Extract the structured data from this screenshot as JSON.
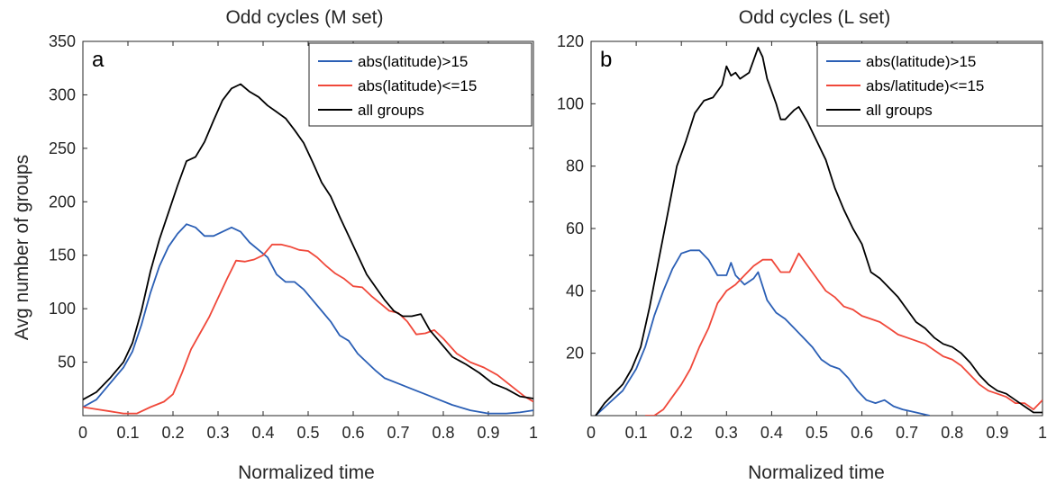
{
  "colors": {
    "blue": "#2b5fb5",
    "red": "#f0483a",
    "black": "#000000"
  },
  "chart_data": [
    {
      "type": "line",
      "panel_letter": "a",
      "title": "Odd cycles (M set)",
      "xlabel": "Normalized time",
      "ylabel": "Avg number of groups",
      "xlim": [
        0,
        1
      ],
      "ylim": [
        0,
        350
      ],
      "xticks": [
        0,
        0.1,
        0.2,
        0.3,
        0.4,
        0.5,
        0.6,
        0.7,
        0.8,
        0.9,
        1
      ],
      "xtick_labels": [
        "0",
        "0.1",
        "0.2",
        "0.3",
        "0.4",
        "0.5",
        "0.6",
        "0.7",
        "0.8",
        "0.9",
        "1"
      ],
      "yticks": [
        50,
        100,
        150,
        200,
        250,
        300,
        350
      ],
      "ytick_labels": [
        "50",
        "100",
        "150",
        "200",
        "250",
        "300",
        "350"
      ],
      "legend": {
        "position": "top-right",
        "entries": [
          "abs(latitude)>15",
          "abs(latitude)<=15",
          "all groups"
        ]
      },
      "series": [
        {
          "name": "abs(latitude)>15",
          "color": "#2b5fb5",
          "x": [
            0,
            0.03,
            0.06,
            0.09,
            0.11,
            0.13,
            0.15,
            0.17,
            0.19,
            0.21,
            0.23,
            0.25,
            0.27,
            0.29,
            0.31,
            0.33,
            0.35,
            0.37,
            0.39,
            0.41,
            0.43,
            0.45,
            0.47,
            0.49,
            0.51,
            0.53,
            0.55,
            0.57,
            0.59,
            0.61,
            0.63,
            0.65,
            0.67,
            0.7,
            0.73,
            0.76,
            0.79,
            0.82,
            0.86,
            0.9,
            0.94,
            0.97,
            1.0
          ],
          "y": [
            8,
            15,
            30,
            45,
            60,
            85,
            115,
            140,
            158,
            170,
            179,
            176,
            168,
            168,
            172,
            176,
            172,
            162,
            155,
            148,
            132,
            125,
            125,
            118,
            108,
            98,
            88,
            75,
            70,
            58,
            50,
            42,
            35,
            30,
            25,
            20,
            15,
            10,
            5,
            2,
            2,
            3,
            5
          ]
        },
        {
          "name": "abs(latitude)<=15",
          "color": "#f0483a",
          "x": [
            0,
            0.03,
            0.06,
            0.09,
            0.12,
            0.15,
            0.18,
            0.2,
            0.22,
            0.24,
            0.26,
            0.28,
            0.3,
            0.32,
            0.34,
            0.36,
            0.38,
            0.4,
            0.42,
            0.44,
            0.46,
            0.48,
            0.5,
            0.52,
            0.54,
            0.56,
            0.58,
            0.6,
            0.62,
            0.64,
            0.66,
            0.68,
            0.7,
            0.72,
            0.74,
            0.76,
            0.78,
            0.8,
            0.83,
            0.86,
            0.89,
            0.92,
            0.95,
            0.98,
            1.0
          ],
          "y": [
            8,
            6,
            4,
            2,
            2,
            8,
            13,
            20,
            40,
            62,
            77,
            92,
            110,
            128,
            145,
            144,
            146,
            150,
            160,
            160,
            158,
            155,
            154,
            148,
            140,
            133,
            128,
            121,
            120,
            112,
            105,
            98,
            96,
            88,
            76,
            77,
            80,
            72,
            58,
            50,
            45,
            38,
            28,
            18,
            13
          ]
        },
        {
          "name": "all groups",
          "color": "#000000",
          "x": [
            0,
            0.03,
            0.06,
            0.09,
            0.11,
            0.13,
            0.15,
            0.17,
            0.19,
            0.21,
            0.23,
            0.25,
            0.27,
            0.29,
            0.31,
            0.33,
            0.35,
            0.37,
            0.39,
            0.41,
            0.43,
            0.45,
            0.47,
            0.49,
            0.51,
            0.53,
            0.55,
            0.57,
            0.59,
            0.61,
            0.63,
            0.65,
            0.67,
            0.69,
            0.71,
            0.73,
            0.75,
            0.77,
            0.79,
            0.82,
            0.85,
            0.88,
            0.91,
            0.94,
            0.97,
            1.0
          ],
          "y": [
            15,
            22,
            35,
            50,
            68,
            98,
            135,
            165,
            190,
            215,
            238,
            242,
            256,
            276,
            295,
            306,
            310,
            303,
            298,
            290,
            284,
            278,
            267,
            255,
            237,
            218,
            205,
            186,
            168,
            150,
            132,
            120,
            108,
            98,
            93,
            93,
            95,
            80,
            70,
            55,
            48,
            40,
            30,
            25,
            18,
            16
          ]
        }
      ]
    },
    {
      "type": "line",
      "panel_letter": "b",
      "title": "Odd cycles (L set)",
      "xlabel": "Normalized time",
      "ylabel": "",
      "xlim": [
        0,
        1
      ],
      "ylim": [
        0,
        120
      ],
      "xticks": [
        0,
        0.1,
        0.2,
        0.3,
        0.4,
        0.5,
        0.6,
        0.7,
        0.8,
        0.9,
        1
      ],
      "xtick_labels": [
        "0",
        "0.1",
        "0.2",
        "0.3",
        "0.4",
        "0.5",
        "0.6",
        "0.7",
        "0.8",
        "0.9",
        "1"
      ],
      "yticks": [
        20,
        40,
        60,
        80,
        100,
        120
      ],
      "ytick_labels": [
        "20",
        "40",
        "60",
        "80",
        "100",
        "120"
      ],
      "legend": {
        "position": "top-right",
        "entries": [
          "abs(latitude)>15",
          "abs/latitude)<=15",
          "all groups"
        ]
      },
      "series": [
        {
          "name": "abs(latitude)>15",
          "color": "#2b5fb5",
          "x": [
            0.01,
            0.04,
            0.07,
            0.1,
            0.12,
            0.14,
            0.16,
            0.18,
            0.2,
            0.22,
            0.24,
            0.26,
            0.28,
            0.3,
            0.31,
            0.32,
            0.34,
            0.36,
            0.37,
            0.39,
            0.41,
            0.43,
            0.45,
            0.47,
            0.49,
            0.51,
            0.53,
            0.55,
            0.57,
            0.59,
            0.61,
            0.63,
            0.65,
            0.67,
            0.69,
            0.72,
            0.75
          ],
          "y": [
            0,
            4,
            8,
            15,
            22,
            32,
            40,
            47,
            52,
            53,
            53,
            50,
            45,
            45,
            49,
            45,
            42,
            44,
            46,
            37,
            33,
            31,
            28,
            25,
            22,
            18,
            16,
            15,
            12,
            8,
            5,
            4,
            5,
            3,
            2,
            1,
            0
          ]
        },
        {
          "name": "abs/latitude)<=15",
          "color": "#f0483a",
          "x": [
            0.12,
            0.14,
            0.16,
            0.18,
            0.2,
            0.22,
            0.24,
            0.26,
            0.28,
            0.3,
            0.32,
            0.34,
            0.36,
            0.38,
            0.4,
            0.42,
            0.44,
            0.46,
            0.48,
            0.5,
            0.52,
            0.54,
            0.56,
            0.58,
            0.6,
            0.62,
            0.64,
            0.66,
            0.68,
            0.7,
            0.72,
            0.74,
            0.76,
            0.78,
            0.8,
            0.82,
            0.84,
            0.86,
            0.88,
            0.9,
            0.92,
            0.94,
            0.96,
            0.98,
            1.0
          ],
          "y": [
            0,
            0,
            2,
            6,
            10,
            15,
            22,
            28,
            36,
            40,
            42,
            45,
            48,
            50,
            50,
            46,
            46,
            52,
            48,
            44,
            40,
            38,
            35,
            34,
            32,
            31,
            30,
            28,
            26,
            25,
            24,
            23,
            21,
            19,
            18,
            16,
            13,
            10,
            8,
            7,
            6,
            4,
            4,
            2,
            5
          ]
        },
        {
          "name": "all groups",
          "color": "#000000",
          "x": [
            0.01,
            0.03,
            0.05,
            0.07,
            0.09,
            0.11,
            0.13,
            0.15,
            0.17,
            0.19,
            0.21,
            0.23,
            0.25,
            0.27,
            0.29,
            0.3,
            0.31,
            0.32,
            0.33,
            0.35,
            0.37,
            0.38,
            0.39,
            0.41,
            0.42,
            0.43,
            0.45,
            0.46,
            0.48,
            0.5,
            0.52,
            0.54,
            0.56,
            0.58,
            0.6,
            0.62,
            0.64,
            0.66,
            0.68,
            0.7,
            0.72,
            0.74,
            0.76,
            0.78,
            0.8,
            0.82,
            0.84,
            0.86,
            0.88,
            0.9,
            0.92,
            0.94,
            0.96,
            0.98,
            1.0
          ],
          "y": [
            0,
            4,
            7,
            10,
            15,
            22,
            35,
            50,
            65,
            80,
            88,
            97,
            101,
            102,
            106,
            112,
            109,
            110,
            108,
            110,
            118,
            115,
            108,
            100,
            95,
            95,
            98,
            99,
            94,
            88,
            82,
            73,
            66,
            60,
            55,
            46,
            44,
            41,
            38,
            34,
            30,
            28,
            25,
            23,
            22,
            20,
            17,
            13,
            10,
            8,
            7,
            5,
            3,
            1,
            1
          ]
        }
      ]
    }
  ]
}
